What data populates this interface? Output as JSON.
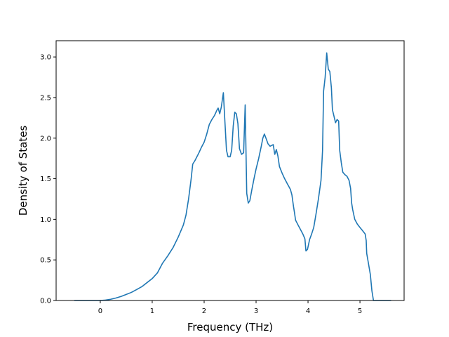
{
  "chart_data": {
    "type": "line",
    "title": "",
    "xlabel": "Frequency (THz)",
    "ylabel": "Density of States",
    "xlim": [
      -0.85,
      5.85
    ],
    "ylim": [
      0.0,
      3.2
    ],
    "xticks": [
      0,
      1,
      2,
      3,
      4,
      5
    ],
    "yticks": [
      0.0,
      0.5,
      1.0,
      1.5,
      2.0,
      2.5,
      3.0
    ],
    "xtick_labels": [
      "0",
      "1",
      "2",
      "3",
      "4",
      "5"
    ],
    "ytick_labels": [
      "0.0",
      "0.5",
      "1.0",
      "1.5",
      "2.0",
      "2.5",
      "3.0"
    ],
    "grid": false,
    "legend": "none",
    "series": [
      {
        "color": "#1f77b4",
        "points": [
          [
            -0.5,
            0.0
          ],
          [
            -0.2,
            0.0
          ],
          [
            0.0,
            0.0
          ],
          [
            0.1,
            0.005
          ],
          [
            0.2,
            0.015
          ],
          [
            0.3,
            0.03
          ],
          [
            0.4,
            0.05
          ],
          [
            0.5,
            0.075
          ],
          [
            0.6,
            0.1
          ],
          [
            0.7,
            0.135
          ],
          [
            0.8,
            0.17
          ],
          [
            0.9,
            0.22
          ],
          [
            1.0,
            0.27
          ],
          [
            1.1,
            0.34
          ],
          [
            1.2,
            0.46
          ],
          [
            1.3,
            0.55
          ],
          [
            1.4,
            0.65
          ],
          [
            1.5,
            0.78
          ],
          [
            1.6,
            0.93
          ],
          [
            1.65,
            1.05
          ],
          [
            1.7,
            1.25
          ],
          [
            1.75,
            1.5
          ],
          [
            1.78,
            1.68
          ],
          [
            1.82,
            1.72
          ],
          [
            1.9,
            1.82
          ],
          [
            1.95,
            1.89
          ],
          [
            2.0,
            1.95
          ],
          [
            2.05,
            2.05
          ],
          [
            2.1,
            2.17
          ],
          [
            2.15,
            2.23
          ],
          [
            2.2,
            2.28
          ],
          [
            2.25,
            2.35
          ],
          [
            2.27,
            2.37
          ],
          [
            2.3,
            2.3
          ],
          [
            2.33,
            2.38
          ],
          [
            2.37,
            2.56
          ],
          [
            2.4,
            2.2
          ],
          [
            2.43,
            1.85
          ],
          [
            2.46,
            1.77
          ],
          [
            2.5,
            1.77
          ],
          [
            2.53,
            1.85
          ],
          [
            2.56,
            2.15
          ],
          [
            2.59,
            2.32
          ],
          [
            2.62,
            2.3
          ],
          [
            2.65,
            2.18
          ],
          [
            2.68,
            1.87
          ],
          [
            2.72,
            1.8
          ],
          [
            2.76,
            1.82
          ],
          [
            2.79,
            2.41
          ],
          [
            2.82,
            1.32
          ],
          [
            2.85,
            1.2
          ],
          [
            2.88,
            1.23
          ],
          [
            2.92,
            1.37
          ],
          [
            2.96,
            1.5
          ],
          [
            3.0,
            1.62
          ],
          [
            3.05,
            1.75
          ],
          [
            3.1,
            1.9
          ],
          [
            3.13,
            2.0
          ],
          [
            3.16,
            2.05
          ],
          [
            3.19,
            2.0
          ],
          [
            3.23,
            1.93
          ],
          [
            3.27,
            1.9
          ],
          [
            3.3,
            1.91
          ],
          [
            3.33,
            1.92
          ],
          [
            3.36,
            1.8
          ],
          [
            3.39,
            1.86
          ],
          [
            3.42,
            1.78
          ],
          [
            3.45,
            1.65
          ],
          [
            3.5,
            1.57
          ],
          [
            3.55,
            1.5
          ],
          [
            3.6,
            1.44
          ],
          [
            3.66,
            1.37
          ],
          [
            3.69,
            1.3
          ],
          [
            3.72,
            1.16
          ],
          [
            3.74,
            1.08
          ],
          [
            3.76,
            0.99
          ],
          [
            3.8,
            0.94
          ],
          [
            3.85,
            0.88
          ],
          [
            3.9,
            0.82
          ],
          [
            3.94,
            0.76
          ],
          [
            3.96,
            0.61
          ],
          [
            3.99,
            0.63
          ],
          [
            4.03,
            0.75
          ],
          [
            4.07,
            0.82
          ],
          [
            4.11,
            0.9
          ],
          [
            4.15,
            1.05
          ],
          [
            4.2,
            1.25
          ],
          [
            4.25,
            1.48
          ],
          [
            4.28,
            1.85
          ],
          [
            4.3,
            2.58
          ],
          [
            4.33,
            2.75
          ],
          [
            4.36,
            3.05
          ],
          [
            4.39,
            2.85
          ],
          [
            4.42,
            2.82
          ],
          [
            4.45,
            2.62
          ],
          [
            4.47,
            2.35
          ],
          [
            4.5,
            2.27
          ],
          [
            4.53,
            2.19
          ],
          [
            4.56,
            2.23
          ],
          [
            4.59,
            2.21
          ],
          [
            4.61,
            1.85
          ],
          [
            4.64,
            1.7
          ],
          [
            4.67,
            1.58
          ],
          [
            4.71,
            1.55
          ],
          [
            4.75,
            1.53
          ],
          [
            4.79,
            1.48
          ],
          [
            4.82,
            1.38
          ],
          [
            4.84,
            1.2
          ],
          [
            4.86,
            1.12
          ],
          [
            4.9,
            1.0
          ],
          [
            4.95,
            0.94
          ],
          [
            5.0,
            0.9
          ],
          [
            5.05,
            0.86
          ],
          [
            5.1,
            0.82
          ],
          [
            5.12,
            0.74
          ],
          [
            5.13,
            0.58
          ],
          [
            5.16,
            0.47
          ],
          [
            5.2,
            0.32
          ],
          [
            5.23,
            0.12
          ],
          [
            5.26,
            0.0
          ],
          [
            5.4,
            0.0
          ],
          [
            5.6,
            0.0
          ]
        ]
      }
    ]
  }
}
